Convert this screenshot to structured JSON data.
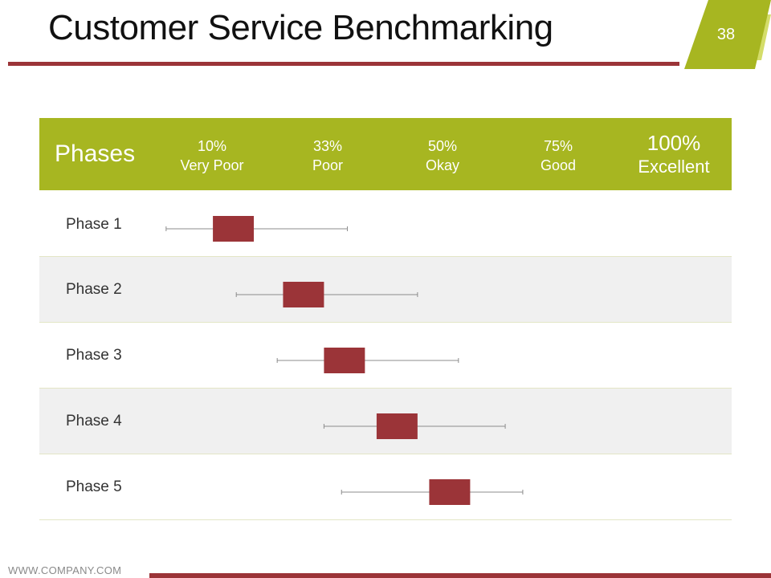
{
  "slide": {
    "title": "Customer Service Benchmarking",
    "page_number": "38",
    "footer_url": "WWW.COMPANY.COM"
  },
  "colors": {
    "accent_green": "#a7b621",
    "light_green": "#d4dd6a",
    "maroon": "#9b3438",
    "row_alt": "#f0f0f0",
    "whisker": "#8c8c8c"
  },
  "chart_data": {
    "type": "boxplot",
    "header_label": "Phases",
    "scale": [
      {
        "percent": "10%",
        "label": "Very Poor"
      },
      {
        "percent": "33%",
        "label": "Poor"
      },
      {
        "percent": "50%",
        "label": "Okay"
      },
      {
        "percent": "75%",
        "label": "Good"
      },
      {
        "percent": "100%",
        "label": "Excellent"
      }
    ],
    "x_range": [
      0,
      100
    ],
    "phases": [
      {
        "name": "Phase 1",
        "whisker_min": 3,
        "box_low": 11,
        "box_high": 18,
        "whisker_max": 34
      },
      {
        "name": "Phase 2",
        "whisker_min": 15,
        "box_low": 23,
        "box_high": 30,
        "whisker_max": 46
      },
      {
        "name": "Phase 3",
        "whisker_min": 22,
        "box_low": 30,
        "box_high": 37,
        "whisker_max": 53
      },
      {
        "name": "Phase 4",
        "whisker_min": 30,
        "box_low": 39,
        "box_high": 46,
        "whisker_max": 61
      },
      {
        "name": "Phase 5",
        "whisker_min": 33,
        "box_low": 48,
        "box_high": 55,
        "whisker_max": 64
      }
    ]
  }
}
